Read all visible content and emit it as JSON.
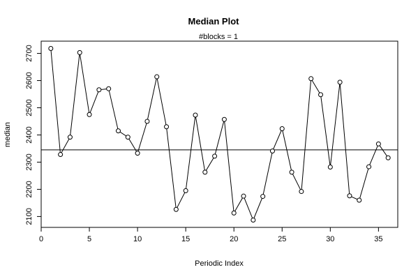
{
  "chart_data": {
    "type": "line",
    "title": "Median Plot",
    "subtitle": "#blocks =  1",
    "xlabel": "Periodic Index",
    "ylabel": "median",
    "xlim": [
      0,
      37
    ],
    "ylim": [
      2060,
      2745
    ],
    "x_ticks": [
      0,
      5,
      10,
      15,
      20,
      25,
      30,
      35
    ],
    "y_ticks": [
      2100,
      2200,
      2300,
      2400,
      2500,
      2600,
      2700
    ],
    "x": [
      1,
      2,
      3,
      4,
      5,
      6,
      7,
      8,
      9,
      10,
      11,
      12,
      13,
      14,
      15,
      16,
      17,
      18,
      19,
      20,
      21,
      22,
      23,
      24,
      25,
      26,
      27,
      28,
      29,
      30,
      31,
      32,
      33,
      34,
      35,
      36
    ],
    "values": [
      2718,
      2328,
      2392,
      2703,
      2475,
      2566,
      2570,
      2415,
      2392,
      2333,
      2450,
      2614,
      2430,
      2126,
      2195,
      2473,
      2263,
      2322,
      2457,
      2113,
      2175,
      2087,
      2174,
      2341,
      2423,
      2263,
      2192,
      2607,
      2548,
      2282,
      2594,
      2176,
      2160,
      2283,
      2367,
      2316
    ],
    "reference_line": 2345,
    "marker": "open-circle",
    "colors": {
      "line": "#000000",
      "marker_fill": "#ffffff",
      "reference_line": "#000000"
    }
  }
}
